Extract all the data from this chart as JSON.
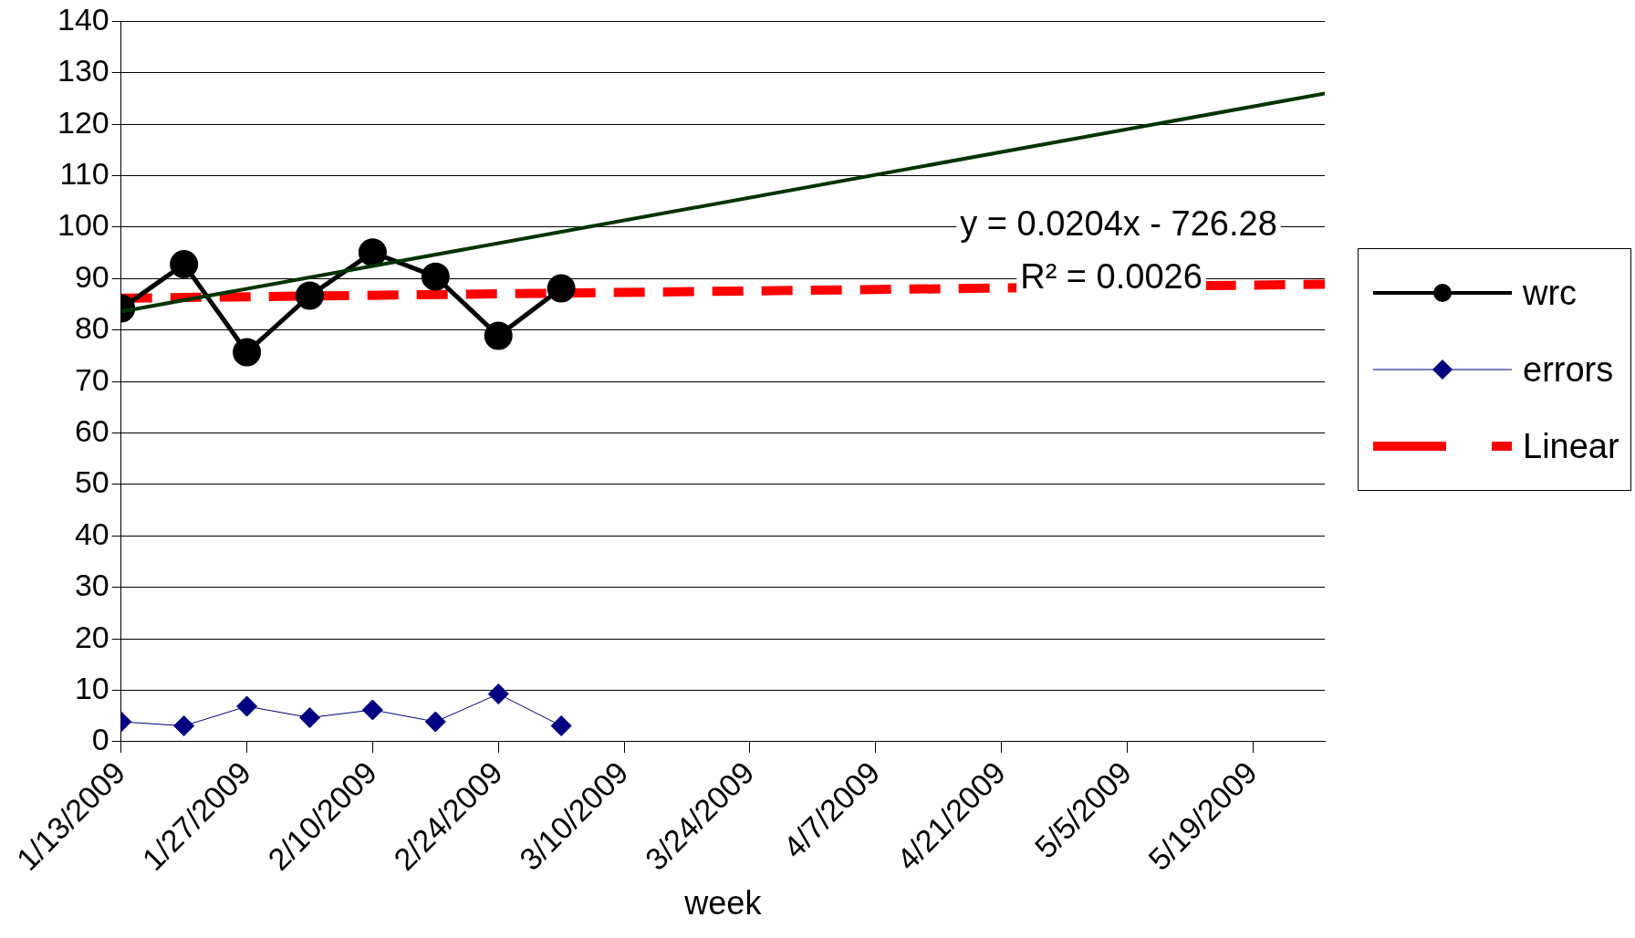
{
  "chart_data": {
    "type": "line",
    "xlabel": "week",
    "x": [
      "2009-01-13",
      "2009-01-20",
      "2009-01-27",
      "2009-02-03",
      "2009-02-10",
      "2009-02-17",
      "2009-02-24",
      "2009-03-03"
    ],
    "series": [
      {
        "name": "wrc",
        "color": "#000000",
        "marker": "circle",
        "values": [
          84.2,
          92.8,
          75.7,
          86.7,
          95.1,
          90.4,
          78.9,
          88.1
        ]
      },
      {
        "name": "errors",
        "color": "#000080",
        "marker": "diamond",
        "values": [
          3.9,
          3.1,
          6.9,
          4.7,
          6.2,
          3.9,
          9.3,
          3.1
        ]
      },
      {
        "name": "Linear",
        "color": "#ff0000",
        "marker": "none",
        "line_style": "dashed",
        "x": [
          "2009-01-13",
          "2009-05-27"
        ],
        "values": [
          86.2,
          88.9
        ]
      },
      {
        "color": "#003300",
        "marker": "none",
        "x": [
          "2009-01-13",
          "2009-05-27"
        ],
        "values": [
          83.6,
          126
        ]
      }
    ],
    "xlim": [
      "2009-01-13",
      "2009-05-27"
    ],
    "xticks": [
      {
        "value": "2009-01-13",
        "label": "1/13/2009"
      },
      {
        "value": "2009-01-27",
        "label": "1/27/2009"
      },
      {
        "value": "2009-02-10",
        "label": "2/10/2009"
      },
      {
        "value": "2009-02-24",
        "label": "2/24/2009"
      },
      {
        "value": "2009-03-10",
        "label": "3/10/2009"
      },
      {
        "value": "2009-03-24",
        "label": "3/24/2009"
      },
      {
        "value": "2009-04-07",
        "label": "4/7/2009"
      },
      {
        "value": "2009-04-21",
        "label": "4/21/2009"
      },
      {
        "value": "2009-05-05",
        "label": "5/5/2009"
      },
      {
        "value": "2009-05-19",
        "label": "5/19/2009"
      }
    ],
    "ylim": [
      0,
      140
    ],
    "yticks": [
      0,
      10,
      20,
      30,
      40,
      50,
      60,
      70,
      80,
      90,
      100,
      110,
      120,
      130,
      140
    ],
    "grid": "y",
    "legend": "right",
    "annotations": [
      "y = 0.0204x - 726.28",
      "R² = 0.0026"
    ]
  }
}
